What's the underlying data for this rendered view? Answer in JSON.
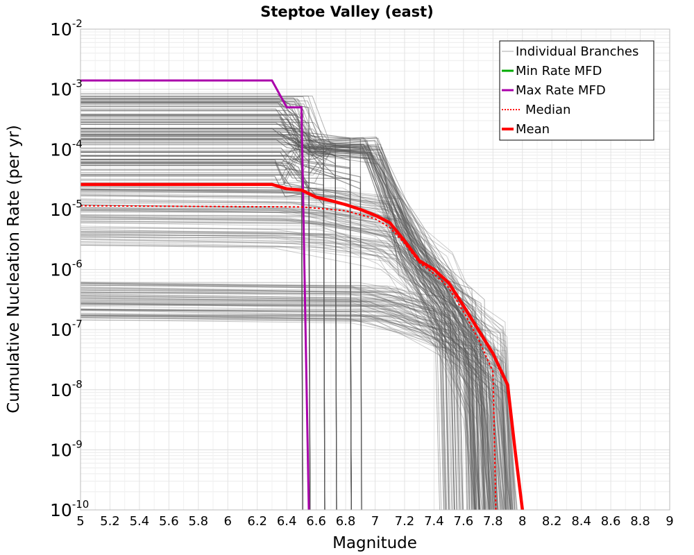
{
  "chart_data": {
    "type": "line",
    "title": "Steptoe Valley (east)",
    "xlabel": "Magnitude",
    "ylabel": "Cumulative Nucleation Rate (per yr)",
    "xlim": [
      5,
      9
    ],
    "ylim": [
      1e-10,
      0.01
    ],
    "yscale": "log",
    "grid": true,
    "legend_position": "top-right",
    "x_ticks": [
      "5",
      "5.2",
      "5.4",
      "5.6",
      "5.8",
      "6",
      "6.2",
      "6.4",
      "6.6",
      "6.8",
      "7",
      "7.2",
      "7.4",
      "7.6",
      "7.8",
      "8",
      "8.2",
      "8.4",
      "8.6",
      "8.8",
      "9"
    ],
    "y_ticks": [
      {
        "base": "10",
        "exp": "-2"
      },
      {
        "base": "10",
        "exp": "-3"
      },
      {
        "base": "10",
        "exp": "-4"
      },
      {
        "base": "10",
        "exp": "-5"
      },
      {
        "base": "10",
        "exp": "-6"
      },
      {
        "base": "10",
        "exp": "-7"
      },
      {
        "base": "10",
        "exp": "-8"
      },
      {
        "base": "10",
        "exp": "-9"
      },
      {
        "base": "10",
        "exp": "-10"
      }
    ],
    "colors": {
      "branches": "#555555",
      "min": "#00aa00",
      "max": "#aa00aa",
      "median": "#ff0000",
      "mean": "#ff0000"
    },
    "legend": [
      {
        "key": "branches",
        "label": "Individual Branches"
      },
      {
        "key": "min",
        "label": "Min Rate MFD"
      },
      {
        "key": "max",
        "label": "Max Rate MFD"
      },
      {
        "key": "median",
        "label": "Median"
      },
      {
        "key": "mean",
        "label": "Mean"
      }
    ],
    "series": [
      {
        "name": "Max Rate MFD",
        "key": "max",
        "points": [
          [
            5.0,
            0.0014
          ],
          [
            6.3,
            0.0014
          ],
          [
            6.4,
            0.0005
          ],
          [
            6.5,
            0.0005
          ],
          [
            6.55,
            1e-10
          ]
        ]
      },
      {
        "name": "Mean",
        "key": "mean",
        "points": [
          [
            5.0,
            2.6e-05
          ],
          [
            6.3,
            2.6e-05
          ],
          [
            6.4,
            2.2e-05
          ],
          [
            6.5,
            2.1e-05
          ],
          [
            6.6,
            1.6e-05
          ],
          [
            6.7,
            1.4e-05
          ],
          [
            6.8,
            1.2e-05
          ],
          [
            6.9,
            1e-05
          ],
          [
            7.0,
            8e-06
          ],
          [
            7.1,
            6e-06
          ],
          [
            7.2,
            3e-06
          ],
          [
            7.3,
            1.4e-06
          ],
          [
            7.4,
            1e-06
          ],
          [
            7.5,
            6e-07
          ],
          [
            7.6,
            2.5e-07
          ],
          [
            7.7,
            1e-07
          ],
          [
            7.8,
            4e-08
          ],
          [
            7.9,
            1.2e-08
          ],
          [
            7.95,
            1e-09
          ],
          [
            8.0,
            1e-10
          ]
        ]
      },
      {
        "name": "Median",
        "key": "median",
        "points": [
          [
            5.0,
            1.15e-05
          ],
          [
            6.5,
            1.1e-05
          ],
          [
            6.6,
            1.05e-05
          ],
          [
            6.8,
            9.5e-06
          ],
          [
            7.0,
            7e-06
          ],
          [
            7.1,
            5e-06
          ],
          [
            7.2,
            2.7e-06
          ],
          [
            7.3,
            1.3e-06
          ],
          [
            7.4,
            8.5e-07
          ],
          [
            7.5,
            5e-07
          ],
          [
            7.6,
            2e-07
          ],
          [
            7.7,
            7e-08
          ],
          [
            7.8,
            2e-08
          ],
          [
            7.82,
            1e-10
          ]
        ]
      }
    ]
  }
}
